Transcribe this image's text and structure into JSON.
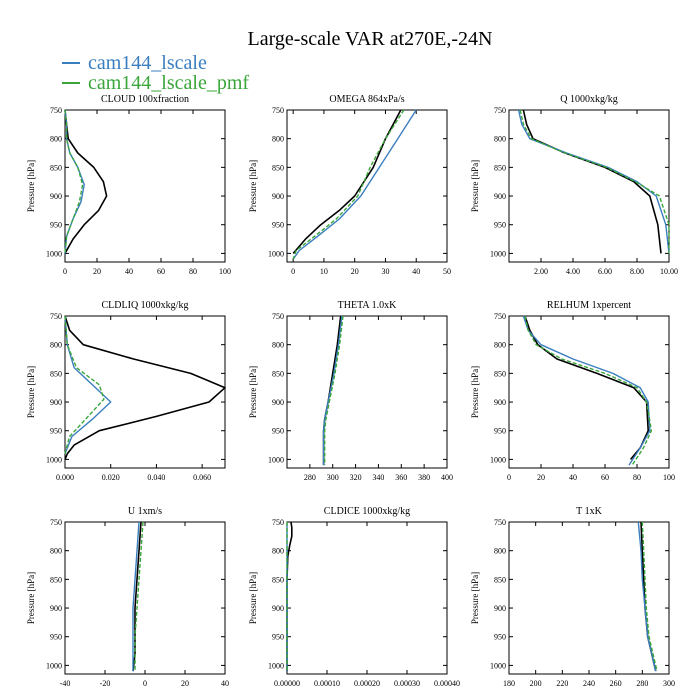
{
  "figure": {
    "title": "Large-scale VAR at270E,-24N",
    "legend": [
      {
        "label": "cam144_lscale",
        "color": "#3a7ebf"
      },
      {
        "label": "cam144_lscale_pmf",
        "color": "#3aa63a"
      }
    ]
  },
  "chart_data": [
    {
      "type": "line",
      "title": "CLOUD 100xfraction",
      "ylabel": "Pressure [hPa]",
      "ylim": [
        750,
        1015
      ],
      "yinvert": true,
      "yticks": [
        750,
        800,
        850,
        900,
        950,
        1000
      ],
      "xlim": [
        0,
        100
      ],
      "xticks": [
        0,
        20,
        40,
        60,
        80,
        100
      ],
      "xticklabels": [
        "0",
        "20",
        "40",
        "60",
        "80",
        "100"
      ],
      "series": [
        {
          "color": "#000000",
          "x": [
            0,
            1,
            2,
            8,
            18,
            24,
            26,
            21,
            12,
            5,
            2,
            0
          ],
          "y": [
            750,
            775,
            800,
            825,
            850,
            875,
            900,
            925,
            950,
            975,
            990,
            1000
          ]
        },
        {
          "color": "#3a7ebf",
          "x": [
            0,
            1,
            1,
            3,
            8,
            12,
            10,
            5,
            1,
            0
          ],
          "y": [
            750,
            775,
            800,
            825,
            850,
            880,
            910,
            940,
            970,
            1000
          ]
        },
        {
          "color": "#3aa63a",
          "x": [
            0,
            1,
            1,
            3,
            8,
            11,
            9,
            5,
            1,
            0
          ],
          "y": [
            750,
            775,
            800,
            825,
            850,
            880,
            910,
            940,
            970,
            1000
          ]
        }
      ]
    },
    {
      "type": "line",
      "title": "OMEGA 864xPa/s",
      "ylabel": "Pressure [hPa]",
      "ylim": [
        750,
        1015
      ],
      "yinvert": true,
      "yticks": [
        750,
        800,
        850,
        900,
        950,
        1000
      ],
      "xlim": [
        -2,
        50
      ],
      "xticks": [
        0,
        10,
        20,
        30,
        40,
        50
      ],
      "xticklabels": [
        "0",
        "10",
        "20",
        "30",
        "40",
        "50"
      ],
      "series": [
        {
          "color": "#000000",
          "x": [
            35,
            30,
            26,
            20,
            15,
            9,
            4,
            0
          ],
          "y": [
            750,
            800,
            850,
            900,
            925,
            950,
            975,
            1000
          ]
        },
        {
          "color": "#3a7ebf",
          "x": [
            40,
            34,
            28,
            22,
            15,
            8,
            2,
            0
          ],
          "y": [
            750,
            800,
            850,
            900,
            940,
            970,
            995,
            1010
          ]
        },
        {
          "color": "#3aa63a",
          "x": [
            36,
            30,
            25,
            21,
            14,
            7,
            1,
            0
          ],
          "y": [
            750,
            800,
            850,
            900,
            940,
            970,
            995,
            1010
          ]
        }
      ]
    },
    {
      "type": "line",
      "title": "Q 1000xkg/kg",
      "ylabel": "Pressure [hPa]",
      "ylim": [
        750,
        1015
      ],
      "yinvert": true,
      "yticks": [
        750,
        800,
        850,
        900,
        950,
        1000
      ],
      "xlim": [
        0,
        10
      ],
      "xticks": [
        2,
        4,
        6,
        8,
        10
      ],
      "xticklabels": [
        "2.00",
        "4.00",
        "6.00",
        "8.00",
        "10.00"
      ],
      "series": [
        {
          "color": "#000000",
          "x": [
            0.9,
            1.1,
            1.5,
            3.5,
            6.0,
            7.8,
            8.8,
            9.3,
            9.5
          ],
          "y": [
            750,
            775,
            800,
            825,
            850,
            875,
            900,
            950,
            1000
          ]
        },
        {
          "color": "#3a7ebf",
          "x": [
            0.6,
            0.8,
            1.3,
            3.6,
            6.2,
            8.0,
            9.2,
            9.8,
            10.0
          ],
          "y": [
            750,
            775,
            800,
            825,
            850,
            875,
            900,
            950,
            1000
          ]
        },
        {
          "color": "#3aa63a",
          "x": [
            0.7,
            0.9,
            1.4,
            3.5,
            6.1,
            7.9,
            9.4,
            10.0,
            10.0
          ],
          "y": [
            750,
            775,
            800,
            825,
            850,
            875,
            900,
            950,
            1000
          ]
        }
      ]
    },
    {
      "type": "line",
      "title": "CLDLIQ 1000xkg/kg",
      "ylabel": "Pressure [hPa]",
      "ylim": [
        750,
        1015
      ],
      "yinvert": true,
      "yticks": [
        750,
        800,
        850,
        900,
        950,
        1000
      ],
      "xlim": [
        0,
        0.07
      ],
      "xticks": [
        0,
        0.02,
        0.04,
        0.06
      ],
      "xticklabels": [
        "0.000",
        "0.020",
        "0.040",
        "0.060"
      ],
      "series": [
        {
          "color": "#000000",
          "x": [
            0,
            0.002,
            0.008,
            0.03,
            0.055,
            0.07,
            0.063,
            0.04,
            0.015,
            0.004,
            0.001,
            0
          ],
          "y": [
            750,
            775,
            800,
            825,
            850,
            875,
            900,
            925,
            950,
            975,
            990,
            1000
          ]
        },
        {
          "color": "#3a7ebf",
          "x": [
            0,
            0.001,
            0.004,
            0.012,
            0.02,
            0.012,
            0.003,
            0
          ],
          "y": [
            750,
            800,
            840,
            870,
            900,
            930,
            960,
            990
          ]
        },
        {
          "color": "#3aa63a",
          "x": [
            0,
            0.001,
            0.005,
            0.015,
            0.017,
            0.009,
            0.002,
            0
          ],
          "y": [
            750,
            800,
            840,
            870,
            895,
            930,
            960,
            990
          ]
        }
      ]
    },
    {
      "type": "line",
      "title": "THETA 1.0xK",
      "ylabel": "Pressure [hPa]",
      "ylim": [
        750,
        1015
      ],
      "yinvert": true,
      "yticks": [
        750,
        800,
        850,
        900,
        950,
        1000
      ],
      "xlim": [
        260,
        400
      ],
      "xticks": [
        280,
        300,
        320,
        340,
        360,
        380,
        400
      ],
      "xticklabels": [
        "280",
        "300",
        "320",
        "340",
        "360",
        "380",
        "400"
      ],
      "series": [
        {
          "color": "#000000",
          "x": [
            307,
            304,
            300,
            296,
            293,
            292,
            292,
            292
          ],
          "y": [
            750,
            800,
            850,
            900,
            930,
            950,
            980,
            1010
          ]
        },
        {
          "color": "#3a7ebf",
          "x": [
            308,
            305,
            301,
            296,
            293,
            292,
            292,
            292
          ],
          "y": [
            750,
            800,
            850,
            900,
            930,
            950,
            980,
            1010
          ]
        },
        {
          "color": "#3aa63a",
          "x": [
            309,
            306,
            302,
            297,
            294,
            293,
            293,
            293
          ],
          "y": [
            750,
            800,
            850,
            900,
            930,
            950,
            980,
            1010
          ]
        }
      ]
    },
    {
      "type": "line",
      "title": "RELHUM 1xpercent",
      "ylabel": "Pressure [hPa]",
      "ylim": [
        750,
        1015
      ],
      "yinvert": true,
      "yticks": [
        750,
        800,
        850,
        900,
        950,
        1000
      ],
      "xlim": [
        0,
        100
      ],
      "xticks": [
        0,
        20,
        40,
        60,
        80,
        100
      ],
      "xticklabels": [
        "0",
        "20",
        "40",
        "60",
        "80",
        "100"
      ],
      "series": [
        {
          "color": "#000000",
          "x": [
            10,
            13,
            18,
            30,
            55,
            78,
            86,
            87,
            82,
            76
          ],
          "y": [
            750,
            775,
            800,
            825,
            850,
            875,
            900,
            950,
            980,
            1000
          ]
        },
        {
          "color": "#3a7ebf",
          "x": [
            9,
            12,
            20,
            40,
            65,
            82,
            87,
            88,
            82,
            75
          ],
          "y": [
            750,
            775,
            800,
            825,
            850,
            875,
            900,
            950,
            980,
            1010
          ]
        },
        {
          "color": "#3aa63a",
          "x": [
            10,
            12,
            17,
            33,
            60,
            80,
            86,
            89,
            84,
            77
          ],
          "y": [
            750,
            775,
            800,
            825,
            850,
            875,
            900,
            950,
            980,
            1010
          ]
        }
      ]
    },
    {
      "type": "line",
      "title": "U 1xm/s",
      "ylabel": "Pressure [hPa]",
      "ylim": [
        750,
        1015
      ],
      "yinvert": true,
      "yticks": [
        750,
        800,
        850,
        900,
        950,
        1000
      ],
      "xlim": [
        -40,
        40
      ],
      "xticks": [
        -40,
        -20,
        0,
        20,
        40
      ],
      "xticklabels": [
        "-40",
        "-20",
        "0",
        "20",
        "40"
      ],
      "series": [
        {
          "color": "#000000",
          "x": [
            -2,
            -3,
            -4,
            -5,
            -5,
            -5,
            -6
          ],
          "y": [
            750,
            800,
            850,
            900,
            950,
            980,
            1010
          ]
        },
        {
          "color": "#3a7ebf",
          "x": [
            -3,
            -4,
            -5,
            -6,
            -6,
            -6,
            -6
          ],
          "y": [
            750,
            800,
            850,
            900,
            950,
            980,
            1010
          ]
        },
        {
          "color": "#3aa63a",
          "x": [
            -1,
            -2,
            -3,
            -4,
            -5,
            -5,
            -5
          ],
          "y": [
            750,
            800,
            850,
            900,
            950,
            980,
            1010
          ]
        }
      ]
    },
    {
      "type": "line",
      "title": "CLDICE 1000xkg/kg",
      "ylabel": "Pressure [hPa]",
      "ylim": [
        750,
        1015
      ],
      "yinvert": true,
      "yticks": [
        750,
        800,
        850,
        900,
        950,
        1000
      ],
      "xlim": [
        0,
        0.0004
      ],
      "xticks": [
        0,
        0.0001,
        0.0002,
        0.0003,
        0.0004
      ],
      "xticklabels": [
        "0.00000",
        "0.00010",
        "0.00020",
        "0.00030",
        "0.00040"
      ],
      "series": [
        {
          "color": "#000000",
          "x": [
            1e-05,
            1.2e-05,
            1.2e-05,
            7e-06,
            2e-06,
            0,
            0,
            0
          ],
          "y": [
            750,
            760,
            775,
            790,
            810,
            850,
            900,
            1010
          ]
        },
        {
          "color": "#3a7ebf",
          "x": [
            0,
            0,
            0
          ],
          "y": [
            750,
            900,
            1010
          ]
        },
        {
          "color": "#3aa63a",
          "x": [
            0,
            0,
            0
          ],
          "y": [
            750,
            900,
            1010
          ]
        }
      ]
    },
    {
      "type": "line",
      "title": "T 1xK",
      "ylabel": "Pressure [hPa]",
      "ylim": [
        750,
        1015
      ],
      "yinvert": true,
      "yticks": [
        750,
        800,
        850,
        900,
        950,
        1000
      ],
      "xlim": [
        180,
        300
      ],
      "xticks": [
        180,
        200,
        220,
        240,
        260,
        280,
        300
      ],
      "xticklabels": [
        "180",
        "200",
        "220",
        "240",
        "260",
        "280",
        "300"
      ],
      "series": [
        {
          "color": "#000000",
          "x": [
            279,
            280,
            281,
            282,
            284,
            287,
            290
          ],
          "y": [
            750,
            800,
            850,
            900,
            950,
            980,
            1010
          ]
        },
        {
          "color": "#3a7ebf",
          "x": [
            277,
            279,
            280,
            282,
            284,
            287,
            290
          ],
          "y": [
            750,
            800,
            850,
            900,
            950,
            980,
            1010
          ]
        },
        {
          "color": "#3aa63a",
          "x": [
            280,
            281,
            282,
            283,
            285,
            288,
            291
          ],
          "y": [
            750,
            800,
            850,
            900,
            950,
            980,
            1010
          ]
        }
      ]
    }
  ]
}
